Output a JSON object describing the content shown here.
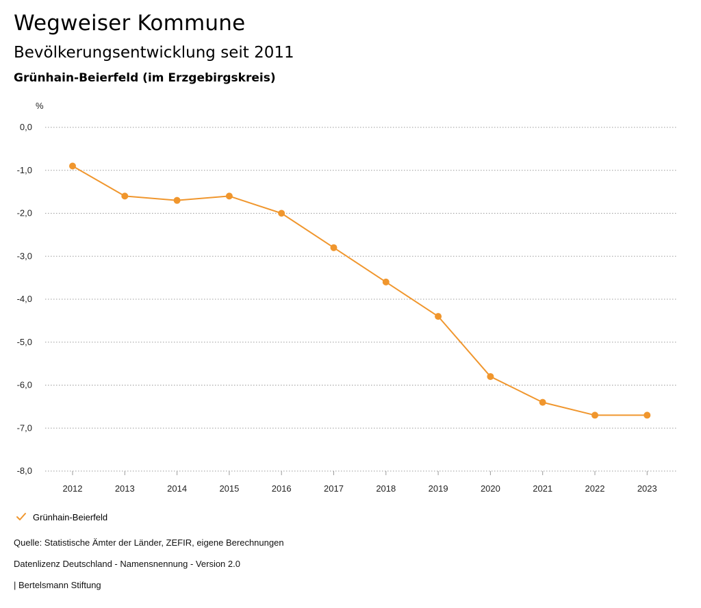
{
  "header": {
    "title": "Wegweiser Kommune",
    "subtitle": "Bevölkerungsentwicklung seit 2011",
    "region": "Grünhain-Beierfeld (im Erzgebirgskreis)"
  },
  "chart_data": {
    "type": "line",
    "unit_label": "%",
    "x": [
      "2012",
      "2013",
      "2014",
      "2015",
      "2016",
      "2017",
      "2018",
      "2019",
      "2020",
      "2021",
      "2022",
      "2023"
    ],
    "y_ticks": [
      "0,0",
      "-1,0",
      "-2,0",
      "-3,0",
      "-4,0",
      "-5,0",
      "-6,0",
      "-7,0",
      "-8,0"
    ],
    "ylim": [
      -8,
      0
    ],
    "grid": true,
    "legend_position": "bottom-left",
    "series": [
      {
        "name": "Grünhain-Beierfeld",
        "color": "#f0962d",
        "values": [
          -0.9,
          -1.6,
          -1.7,
          -1.6,
          -2.0,
          -2.8,
          -3.6,
          -4.4,
          -5.8,
          -6.4,
          -6.7,
          -6.7
        ]
      }
    ]
  },
  "legend": {
    "icon": "check-icon",
    "label": "Grünhain-Beierfeld"
  },
  "footer": {
    "source": "Quelle: Statistische Ämter der Länder, ZEFIR, eigene Berechnungen",
    "license": "Datenlizenz Deutschland - Namensnennung - Version 2.0",
    "publisher": "| Bertelsmann Stiftung"
  }
}
